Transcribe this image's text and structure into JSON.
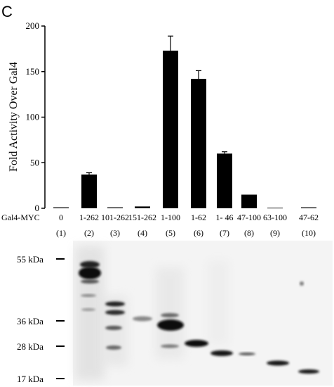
{
  "panel_label": "C",
  "chart_data": {
    "type": "bar",
    "title": "",
    "ylabel": "Fold Activity Over Gal4",
    "xlabel": "Gal4-MYC",
    "ylim": [
      0,
      200
    ],
    "yticks": [
      "0",
      "50",
      "100",
      "150",
      "200"
    ],
    "categories": [
      "0",
      "1-262",
      "101-262",
      "151-262",
      "1-100",
      "1-62",
      "1- 46",
      "47-100",
      "63-100",
      "47-62"
    ],
    "lane_numbers": [
      "(1)",
      "(2)",
      "(3)",
      "(4)",
      "(5)",
      "(6)",
      "(7)",
      "(8)",
      "(9)",
      "(10)"
    ],
    "values": [
      1,
      37,
      1,
      2,
      173,
      142,
      60,
      15,
      0.5,
      1
    ],
    "errors": [
      0,
      2,
      0,
      0,
      16,
      9,
      2,
      0,
      0,
      0
    ],
    "bar_color": "#000000",
    "grid": false,
    "legend": "none"
  },
  "blot": {
    "markers": [
      "55 kDa",
      "36 kDa",
      "28 kDa",
      "17 kDa"
    ],
    "marker_values": [
      55,
      36,
      28,
      17
    ],
    "background_color": "#f4f4f4",
    "band_color": "#111111"
  }
}
